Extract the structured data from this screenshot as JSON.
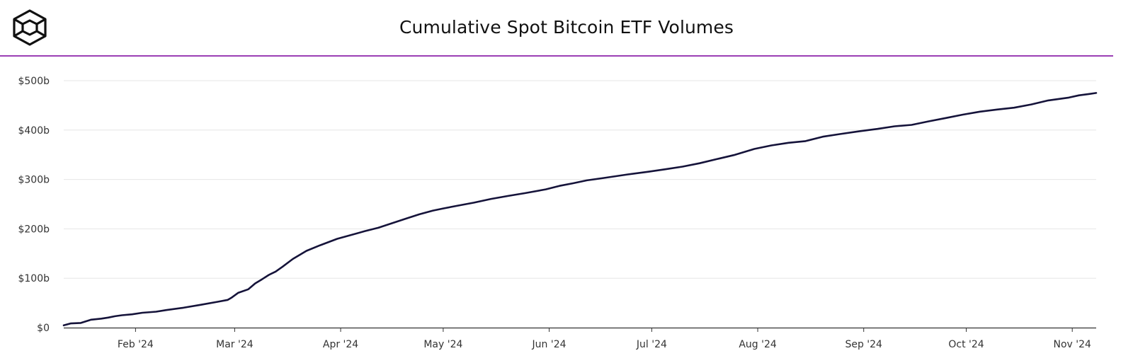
{
  "header": {
    "title": "Cumulative Spot Bitcoin ETF Volumes",
    "logo_icon": "cube-logo-icon"
  },
  "colors": {
    "accent_line": "#9b3fb5",
    "series": "#15133a",
    "grid": "#e6e6e6",
    "axis": "#333333"
  },
  "chart_data": {
    "type": "line",
    "title": "Cumulative Spot Bitcoin ETF Volumes",
    "xlabel": "",
    "ylabel": "",
    "grid": true,
    "legend": "none",
    "ylim": [
      0,
      500
    ],
    "yticks": [
      0,
      100,
      200,
      300,
      400,
      500
    ],
    "ytick_labels": [
      "$0",
      "$100b",
      "$200b",
      "$300b",
      "$400b",
      "$500b"
    ],
    "xlim": [
      "2024-01-11",
      "2024-11-08"
    ],
    "xticks": [
      "2024-02-01",
      "2024-03-01",
      "2024-04-01",
      "2024-05-01",
      "2024-06-01",
      "2024-07-01",
      "2024-08-01",
      "2024-09-01",
      "2024-10-01",
      "2024-11-01"
    ],
    "xtick_labels": [
      "Feb '24",
      "Mar '24",
      "Apr '24",
      "May '24",
      "Jun '24",
      "Jul '24",
      "Aug '24",
      "Sep '24",
      "Oct '24",
      "Nov '24"
    ],
    "series": [
      {
        "x": [
          "2024-01-11",
          "2024-01-13",
          "2024-01-16",
          "2024-01-19",
          "2024-01-22",
          "2024-01-24",
          "2024-01-26",
          "2024-01-28",
          "2024-01-31",
          "2024-02-03",
          "2024-02-07",
          "2024-02-10",
          "2024-02-15",
          "2024-02-20",
          "2024-02-25",
          "2024-02-28",
          "2024-02-29",
          "2024-03-02",
          "2024-03-05",
          "2024-03-07",
          "2024-03-09",
          "2024-03-11",
          "2024-03-13",
          "2024-03-15",
          "2024-03-18",
          "2024-03-22",
          "2024-03-26",
          "2024-03-31",
          "2024-04-03",
          "2024-04-08",
          "2024-04-12",
          "2024-04-16",
          "2024-04-20",
          "2024-04-24",
          "2024-04-28",
          "2024-05-01",
          "2024-05-05",
          "2024-05-10",
          "2024-05-15",
          "2024-05-20",
          "2024-05-25",
          "2024-05-31",
          "2024-06-04",
          "2024-06-08",
          "2024-06-12",
          "2024-06-17",
          "2024-06-24",
          "2024-06-30",
          "2024-07-05",
          "2024-07-10",
          "2024-07-15",
          "2024-07-20",
          "2024-07-25",
          "2024-07-31",
          "2024-08-05",
          "2024-08-10",
          "2024-08-15",
          "2024-08-20",
          "2024-08-25",
          "2024-08-31",
          "2024-09-05",
          "2024-09-10",
          "2024-09-15",
          "2024-09-20",
          "2024-09-25",
          "2024-09-30",
          "2024-10-05",
          "2024-10-10",
          "2024-10-15",
          "2024-10-20",
          "2024-10-25",
          "2024-10-31",
          "2024-11-03",
          "2024-11-06",
          "2024-11-08"
        ],
        "values": [
          4.6,
          8.4,
          9.4,
          16.1,
          18.2,
          20.3,
          23.0,
          25.1,
          27.0,
          30.1,
          32.3,
          35.6,
          40.3,
          46.2,
          52.3,
          56.2,
          60.3,
          70.4,
          77.7,
          89.5,
          97.9,
          106.7,
          113.4,
          123.4,
          138.9,
          155.5,
          166.7,
          179.8,
          185.5,
          195.1,
          202.1,
          211.3,
          220.5,
          229.4,
          237.0,
          241.2,
          246.6,
          253.0,
          260.6,
          266.6,
          272.3,
          279.9,
          286.9,
          292.2,
          298.1,
          303.0,
          310.2,
          315.6,
          320.7,
          325.9,
          332.8,
          341.1,
          349.3,
          361.7,
          368.9,
          374.2,
          377.6,
          386.6,
          391.8,
          397.9,
          402.3,
          407.6,
          410.4,
          417.6,
          424.3,
          431.2,
          437.3,
          441.6,
          445.3,
          451.8,
          460.0,
          465.8,
          470.4,
          473.0,
          475.1
        ]
      }
    ]
  }
}
